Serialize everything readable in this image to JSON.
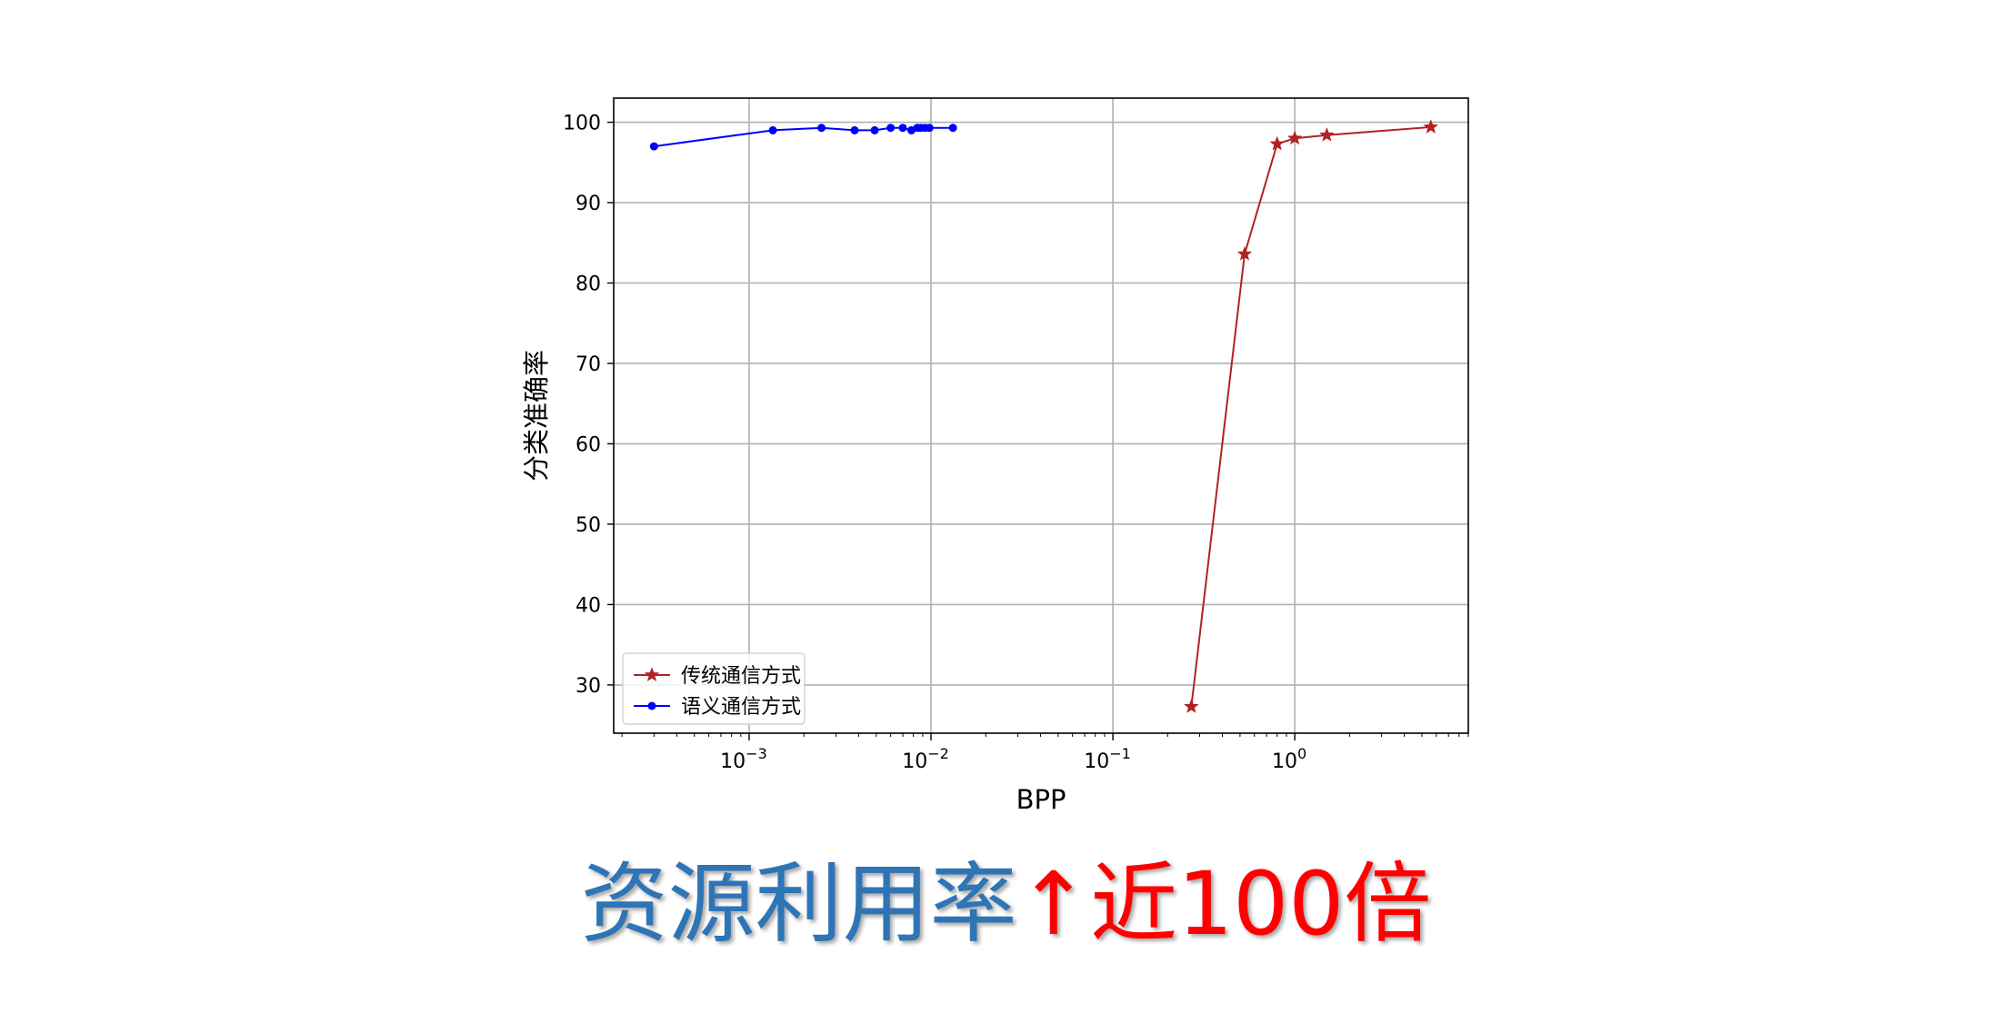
{
  "chart_data": {
    "type": "line",
    "title": "",
    "xlabel": "BPP",
    "ylabel": "分类准确率",
    "xscale": "log",
    "xlim": [
      0.00018,
      9.0
    ],
    "ylim": [
      24,
      103
    ],
    "xticks": [
      {
        "value": 0.001,
        "base": "10",
        "exp": "−3"
      },
      {
        "value": 0.01,
        "base": "10",
        "exp": "−2"
      },
      {
        "value": 0.1,
        "base": "10",
        "exp": "−1"
      },
      {
        "value": 1,
        "base": "10",
        "exp": "0"
      }
    ],
    "yticks": [
      30,
      40,
      50,
      60,
      70,
      80,
      90,
      100
    ],
    "grid": true,
    "legend": "lower-left",
    "series": [
      {
        "name": "传统通信方式",
        "color": "#b22222",
        "marker": "star",
        "x": [
          0.27,
          0.53,
          0.8,
          1.0,
          1.5,
          5.6
        ],
        "y": [
          27.3,
          83.6,
          97.3,
          98.0,
          98.4,
          99.4
        ]
      },
      {
        "name": "语义通信方式",
        "color": "#0000ff",
        "marker": "circle",
        "x": [
          0.0003,
          0.00135,
          0.0025,
          0.0038,
          0.0049,
          0.006,
          0.007,
          0.0078,
          0.0084,
          0.0088,
          0.0093,
          0.0098,
          0.0132
        ],
        "y": [
          97.0,
          99.0,
          99.3,
          99.0,
          99.0,
          99.3,
          99.3,
          99.0,
          99.3,
          99.3,
          99.3,
          99.3,
          99.3
        ]
      }
    ]
  },
  "caption": {
    "left": "资源利用率",
    "arrow": "↑",
    "right": "近100倍"
  },
  "colors": {
    "caption_left": "#2e75b6",
    "caption_right": "#ff0000"
  }
}
